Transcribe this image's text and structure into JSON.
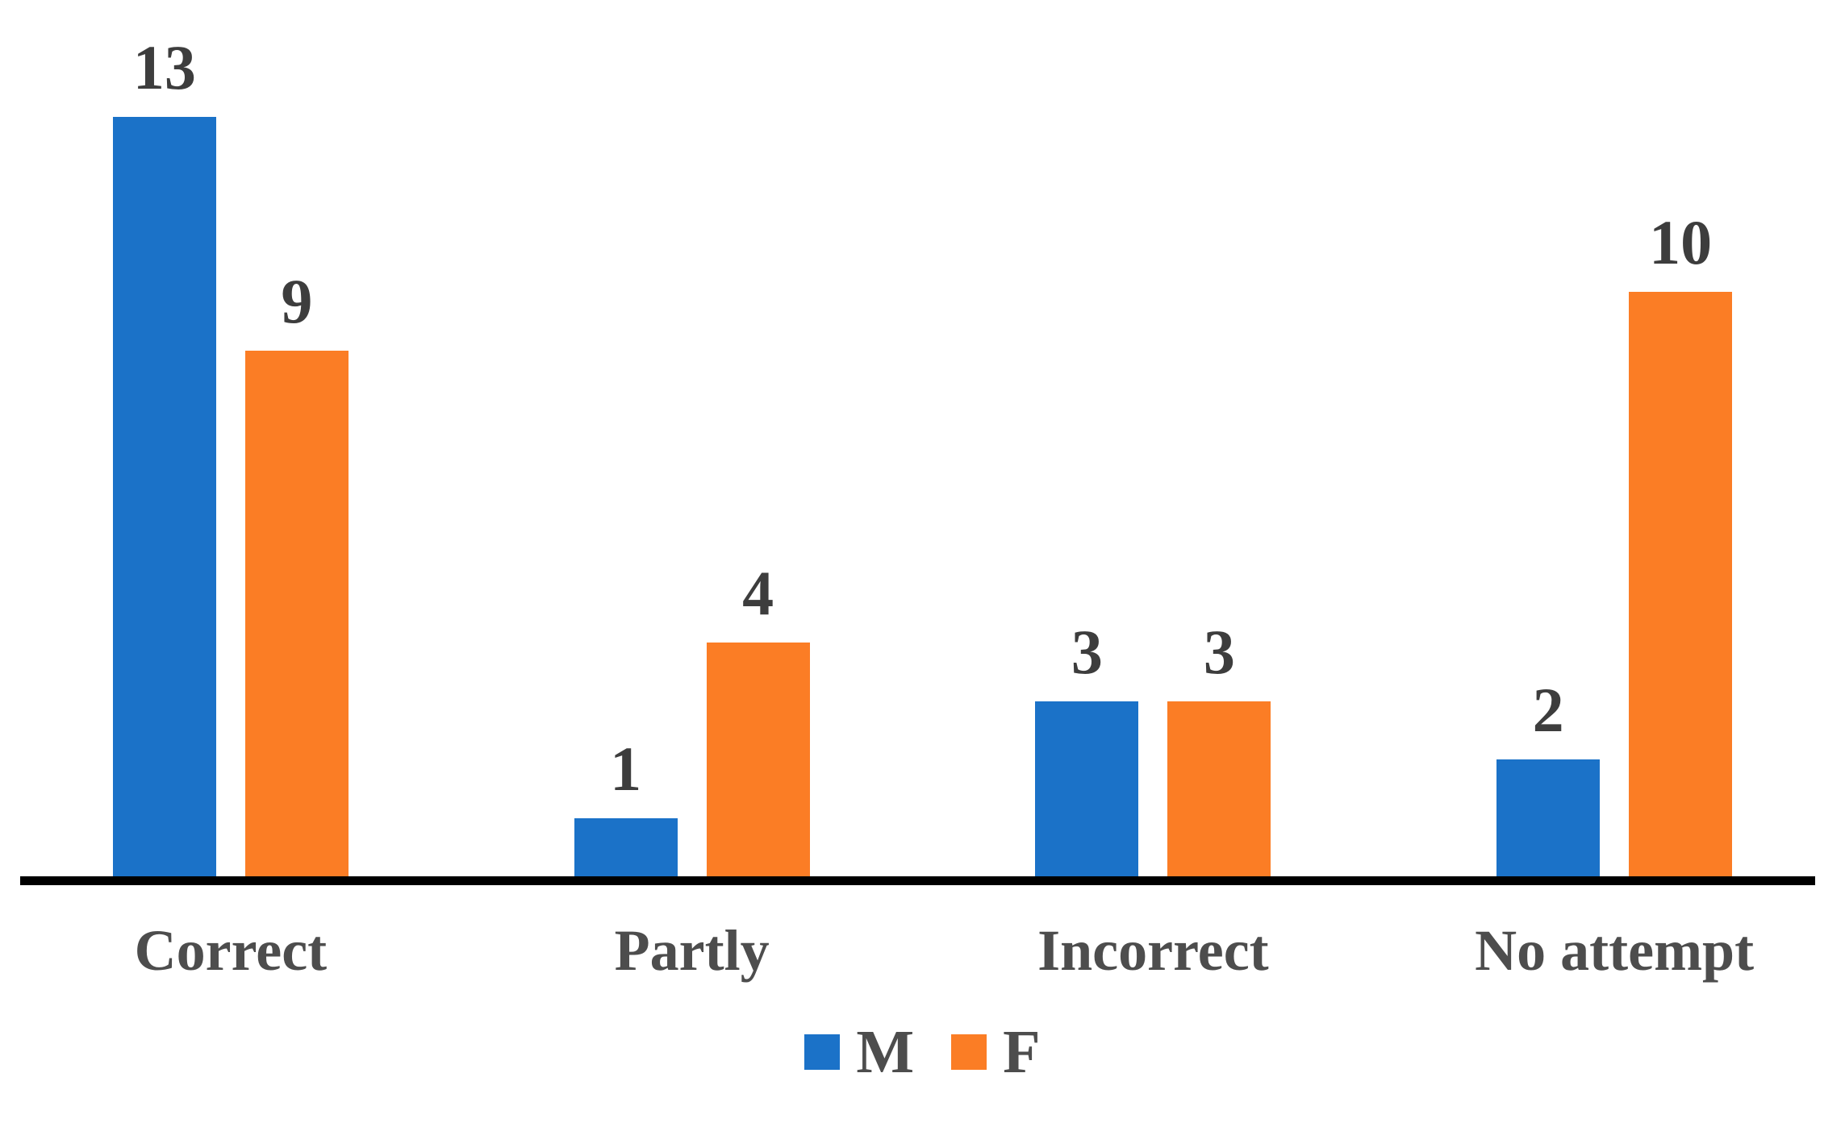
{
  "chart_data": {
    "type": "bar",
    "categories": [
      "Correct",
      "Partly",
      "Incorrect",
      "No attempt"
    ],
    "series": [
      {
        "name": "M",
        "color": "#1b72c8",
        "values": [
          13,
          1,
          3,
          2
        ]
      },
      {
        "name": "F",
        "color": "#fb7d25",
        "values": [
          9,
          4,
          3,
          10
        ]
      }
    ],
    "title": "",
    "xlabel": "",
    "ylabel": "",
    "ylim": [
      0,
      13
    ],
    "grid": false,
    "y_axis_shown": false,
    "value_labels_shown": true,
    "legend_position": "bottom-center",
    "axis_line_color": "#000000",
    "value_label_color": "#3d3d3d",
    "category_label_color": "#4d4d4d",
    "background": "#ffffff"
  }
}
